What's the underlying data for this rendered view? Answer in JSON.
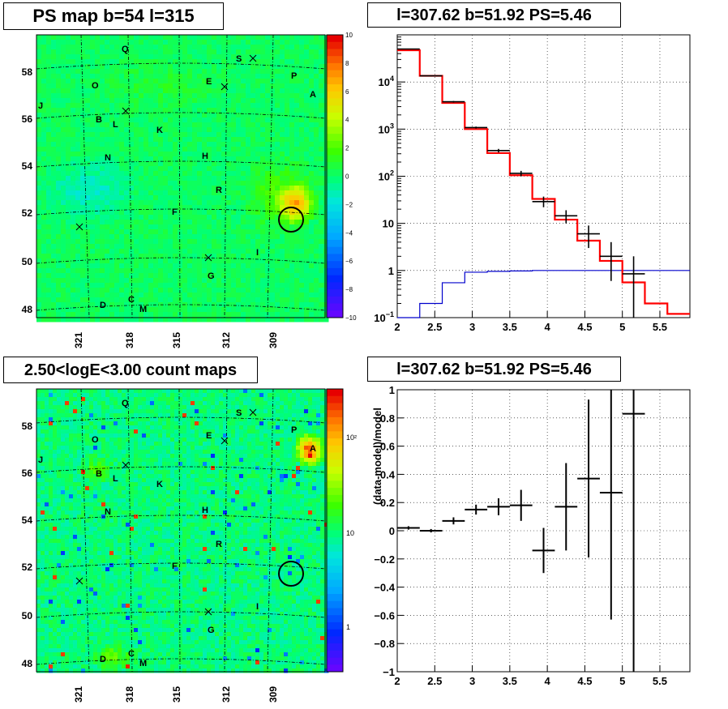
{
  "panels": {
    "ps_map": {
      "title": "PS map b=54 l=315",
      "colorbar_ticks": [
        "10",
        "8",
        "6",
        "4",
        "2",
        "0",
        "−2",
        "−4",
        "−6",
        "−8",
        "−10"
      ],
      "y_ticks": [
        "58",
        "56",
        "54",
        "52",
        "50",
        "48"
      ],
      "x_ticks": [
        "321",
        "318",
        "315",
        "312",
        "309"
      ],
      "labels": [
        "Q",
        "S",
        "E",
        "P",
        "O",
        "A",
        "J",
        "B",
        "L",
        "K",
        "N",
        "H",
        "R",
        "F",
        "I",
        "G",
        "D",
        "C",
        "M"
      ]
    },
    "count_map": {
      "title": "2.50<logE<3.00 count maps",
      "colorbar_ticks": [
        "10²",
        "10",
        "1"
      ],
      "y_ticks": [
        "58",
        "56",
        "54",
        "52",
        "50",
        "48"
      ],
      "x_ticks": [
        "321",
        "318",
        "315",
        "312",
        "309"
      ],
      "labels": [
        "Q",
        "S",
        "E",
        "P",
        "O",
        "A",
        "J",
        "B",
        "L",
        "K",
        "N",
        "H",
        "R",
        "F",
        "I",
        "G",
        "D",
        "C",
        "M"
      ]
    },
    "spectrum": {
      "title": "l=307.62 b=51.92 PS=5.46"
    },
    "residual": {
      "title": "l=307.62 b=51.92 PS=5.46",
      "ylabel": "(data-model)/model"
    }
  },
  "chart_data": [
    {
      "type": "heatmap",
      "title": "PS map b=54 l=315",
      "x_ticks": [
        321,
        318,
        315,
        312,
        309
      ],
      "y_ticks": [
        58,
        56,
        54,
        52,
        50,
        48
      ],
      "color_range": [
        -10,
        10
      ],
      "highlight_circle": {
        "l": 307.62,
        "b": 51.92
      }
    },
    {
      "type": "heatmap",
      "title": "2.50<logE<3.00 count maps",
      "x_ticks": [
        321,
        318,
        315,
        312,
        309
      ],
      "y_ticks": [
        58,
        56,
        54,
        52,
        50,
        48
      ],
      "color_scale": "log",
      "color_range": [
        0.3,
        300
      ],
      "highlight_circle": {
        "l": 307.62,
        "b": 51.92
      }
    },
    {
      "type": "line",
      "title": "l=307.62 b=51.92 PS=5.46",
      "y_scale": "log",
      "xlim": [
        2,
        5.9
      ],
      "ylim": [
        0.1,
        100000
      ],
      "x_ticks": [
        2,
        2.5,
        3,
        3.5,
        4,
        4.5,
        5,
        5.5
      ],
      "bin_edges": [
        2.0,
        2.3,
        2.6,
        2.9,
        3.2,
        3.5,
        3.8,
        4.1,
        4.4,
        4.7,
        5.0,
        5.3,
        5.6,
        5.9
      ],
      "series": [
        {
          "color": "#ff0000",
          "values": [
            47000,
            13500,
            3600,
            1000,
            310,
            105,
            33,
            12,
            4.3,
            1.6,
            0.56,
            0.2,
            0.12
          ]
        },
        {
          "color": "#0000cc",
          "values": [
            0.1,
            0.2,
            0.55,
            0.92,
            0.96,
            0.98,
            1.0,
            1.0,
            1.0,
            1.0,
            1.0,
            1.0,
            1.0
          ]
        },
        {
          "color": "#000000",
          "values": [
            50000,
            13500,
            3800,
            1080,
            350,
            115,
            29,
            14.5,
            6,
            2,
            0.85
          ],
          "err_low": [
            49000,
            13200,
            3650,
            1030,
            320,
            100,
            22,
            10,
            3,
            0.6,
            0.1
          ],
          "err_high": [
            51000,
            13800,
            3950,
            1130,
            380,
            130,
            37,
            19,
            9,
            4,
            2
          ]
        }
      ]
    },
    {
      "type": "scatter",
      "title": "l=307.62 b=51.92 PS=5.46",
      "ylabel": "(data-model)/model",
      "xlim": [
        2,
        5.9
      ],
      "ylim": [
        -1,
        1
      ],
      "x_ticks": [
        2,
        2.5,
        3,
        3.5,
        4,
        4.5,
        5,
        5.5
      ],
      "y_ticks": [
        1,
        0.8,
        0.6,
        0.4,
        0.2,
        0,
        -0.2,
        -0.4,
        -0.6,
        -0.8,
        -1
      ],
      "points": [
        {
          "x": 2.15,
          "x_lo": 2.0,
          "x_hi": 2.3,
          "y": 0.02,
          "err": 0.012
        },
        {
          "x": 2.45,
          "x_lo": 2.3,
          "x_hi": 2.6,
          "y": 0.0,
          "err": 0.012
        },
        {
          "x": 2.75,
          "x_lo": 2.6,
          "x_hi": 2.9,
          "y": 0.07,
          "err": 0.025
        },
        {
          "x": 3.05,
          "x_lo": 2.9,
          "x_hi": 3.2,
          "y": 0.15,
          "err": 0.035
        },
        {
          "x": 3.35,
          "x_lo": 3.2,
          "x_hi": 3.5,
          "y": 0.17,
          "err": 0.06
        },
        {
          "x": 3.65,
          "x_lo": 3.5,
          "x_hi": 3.8,
          "y": 0.18,
          "err": 0.11
        },
        {
          "x": 3.95,
          "x_lo": 3.8,
          "x_hi": 4.1,
          "y": -0.14,
          "err": 0.16
        },
        {
          "x": 4.25,
          "x_lo": 4.1,
          "x_hi": 4.4,
          "y": 0.17,
          "err": 0.31
        },
        {
          "x": 4.55,
          "x_lo": 4.4,
          "x_hi": 4.7,
          "y": 0.37,
          "err": 0.56
        },
        {
          "x": 4.85,
          "x_lo": 4.7,
          "x_hi": 5.0,
          "y": 0.27,
          "err": 0.9
        },
        {
          "x": 5.15,
          "x_lo": 5.0,
          "x_hi": 5.3,
          "y": 0.83,
          "err": 2.0
        }
      ]
    }
  ],
  "colors": {
    "background": "#ffffff",
    "frame": "#000000",
    "model_line": "#ff0000",
    "exposure_line": "#0000cc",
    "data_points": "#000000"
  }
}
